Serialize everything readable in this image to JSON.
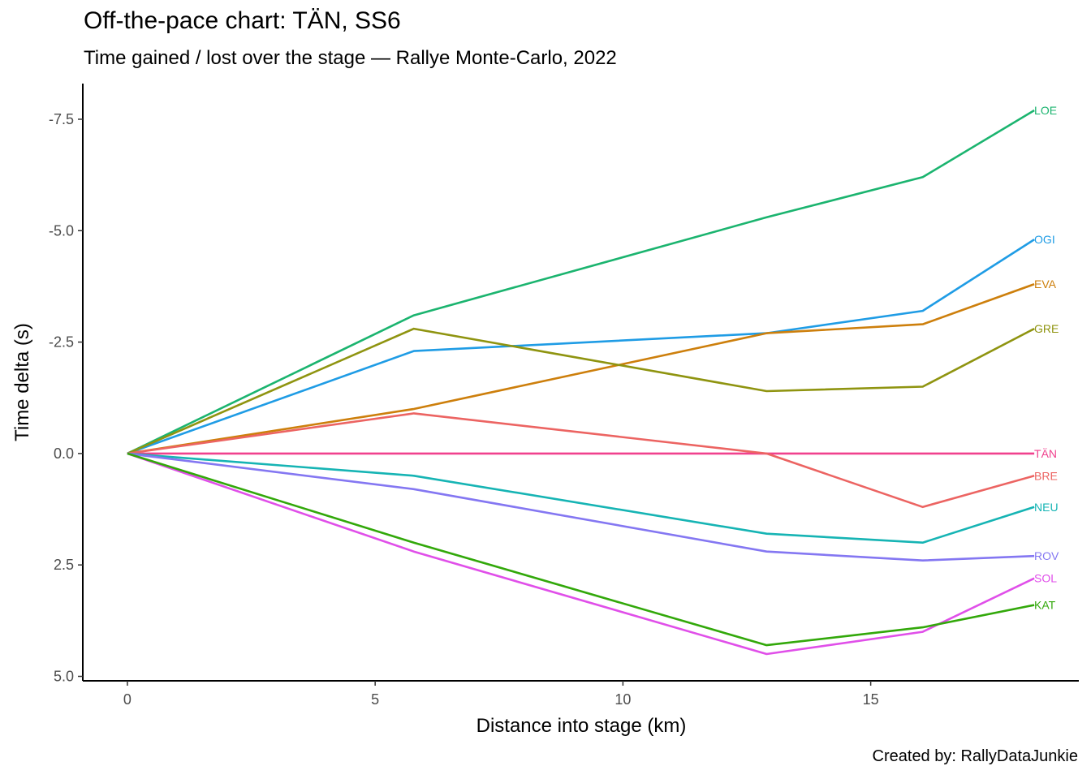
{
  "chart_data": {
    "type": "line",
    "title": "Off-the-pace chart: TÄN, SS6",
    "subtitle": "Time gained / lost over the stage — Rallye Monte-Carlo, 2022",
    "caption": "Created by: RallyDataJunkie",
    "xlabel": "Distance into stage (km)",
    "ylabel": "Time delta (s)",
    "x": [
      0,
      5.78,
      12.9,
      16.05,
      18.3
    ],
    "xlim": [
      -0.9,
      19.2
    ],
    "ylim": [
      5.1,
      -8.3
    ],
    "y_reversed": true,
    "x_ticks": [
      0,
      5,
      10,
      15
    ],
    "x_tick_labels": [
      "0",
      "5",
      "10",
      "15"
    ],
    "y_ticks": [
      -7.5,
      -5,
      -2.5,
      0,
      2.5,
      5
    ],
    "y_tick_labels": [
      "-7.5",
      "-5.0",
      "-2.5",
      "0.0",
      "2.5",
      "5.0"
    ],
    "grid": false,
    "legend": "direct labels at line ends",
    "series": [
      {
        "name": "LOE",
        "color": "#1BB46F",
        "values": [
          0,
          -3.1,
          -5.3,
          -6.2,
          -7.7
        ]
      },
      {
        "name": "OGI",
        "color": "#1F9CE5",
        "values": [
          0,
          -2.3,
          -2.7,
          -3.2,
          -4.8
        ]
      },
      {
        "name": "EVA",
        "color": "#CD7F0C",
        "values": [
          0,
          -1.0,
          -2.7,
          -2.9,
          -3.8
        ]
      },
      {
        "name": "GRE",
        "color": "#8F9410",
        "values": [
          0,
          -2.8,
          -1.4,
          -1.5,
          -2.8
        ]
      },
      {
        "name": "TÄN",
        "color": "#F0418E",
        "values": [
          0,
          0,
          0,
          0,
          0
        ]
      },
      {
        "name": "BRE",
        "color": "#EC6462",
        "values": [
          0,
          -0.9,
          0,
          1.2,
          0.5
        ]
      },
      {
        "name": "NEU",
        "color": "#16B4B4",
        "values": [
          0,
          0.5,
          1.8,
          2.0,
          1.2
        ]
      },
      {
        "name": "ROV",
        "color": "#8477F2",
        "values": [
          0,
          0.8,
          2.2,
          2.4,
          2.3
        ]
      },
      {
        "name": "SOL",
        "color": "#E04FE9",
        "values": [
          0,
          2.2,
          4.5,
          4.0,
          2.8
        ]
      },
      {
        "name": "KAT",
        "color": "#32A80A",
        "values": [
          0,
          2.0,
          4.3,
          3.9,
          3.4
        ]
      }
    ]
  }
}
